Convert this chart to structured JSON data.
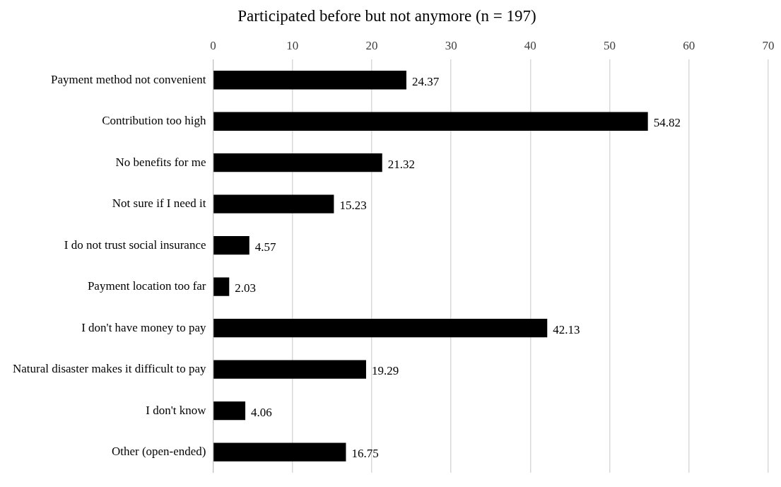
{
  "chart_data": {
    "type": "bar",
    "orientation": "horizontal",
    "title": "Participated before but not anymore (n = 197)",
    "categories": [
      "Payment method not convenient",
      "Contribution too high",
      "No benefits for me",
      "Not sure if I need it",
      "I do not trust social insurance",
      "Payment location too far",
      "I don't have money to pay",
      "Natural disaster makes it difficult to pay",
      "I don't know",
      "Other (open-ended)"
    ],
    "values": [
      24.37,
      54.82,
      21.32,
      15.23,
      4.57,
      2.03,
      42.13,
      19.29,
      4.06,
      16.75
    ],
    "color": "#000000",
    "xlim": [
      0,
      70
    ],
    "xticks": [
      0,
      10,
      20,
      30,
      40,
      50,
      60,
      70
    ],
    "grid": "x",
    "data_labels": true
  }
}
